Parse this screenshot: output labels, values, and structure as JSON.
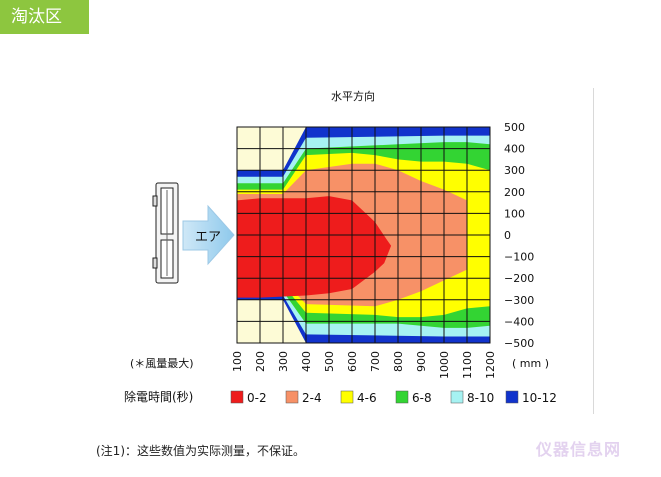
{
  "header": {
    "tab_label": "淘汰区"
  },
  "chart_data": {
    "type": "heatmap",
    "title": "水平方向",
    "x_ticks": [
      "100",
      "200",
      "300",
      "400",
      "500",
      "600",
      "700",
      "800",
      "900",
      "1000",
      "1100",
      "1200"
    ],
    "x_unit": "( mm )",
    "y_ticks": [
      "500",
      "400",
      "300",
      "200",
      "100",
      "0",
      "−100",
      "−200",
      "−300",
      "−400",
      "−500"
    ],
    "xlim": [
      100,
      1200
    ],
    "ylim": [
      -500,
      500
    ],
    "left_note": "(＊風量最大)",
    "air_label": "エア",
    "legend_title": "除電時間(秒)",
    "legend_position": "bottom",
    "legend": [
      {
        "label": "0-2",
        "color": "#ee1c1c"
      },
      {
        "label": "2-4",
        "color": "#f79167"
      },
      {
        "label": "4-6",
        "color": "#ffff00"
      },
      {
        "label": "6-8",
        "color": "#33d433"
      },
      {
        "label": "8-10",
        "color": "#a6f2f2"
      },
      {
        "label": "10-12",
        "color": "#1133cc"
      }
    ],
    "background_color": "#fdfbd6",
    "contours": [
      {
        "range": "10-12",
        "x": [
          100,
          300,
          400,
          1200,
          1200,
          400,
          300,
          100
        ],
        "y": [
          300,
          300,
          500,
          500,
          -500,
          -500,
          -300,
          -300
        ]
      },
      {
        "range": "8-10",
        "x": [
          100,
          300,
          400,
          1000,
          1200,
          1200,
          1000,
          400,
          300,
          100
        ],
        "y": [
          270,
          270,
          450,
          460,
          460,
          -470,
          -470,
          -460,
          -280,
          -280
        ]
      },
      {
        "range": "6-8",
        "x": [
          100,
          300,
          400,
          800,
          1000,
          1100,
          1200,
          1200,
          1100,
          1000,
          800,
          400,
          300,
          100
        ],
        "y": [
          240,
          240,
          400,
          420,
          430,
          430,
          420,
          -420,
          -430,
          -430,
          -410,
          -410,
          -260,
          -260
        ]
      },
      {
        "range": "4-6",
        "x": [
          100,
          300,
          400,
          600,
          700,
          800,
          900,
          1000,
          1100,
          1200,
          1200,
          1100,
          1000,
          900,
          800,
          700,
          400,
          300,
          100
        ],
        "y": [
          210,
          210,
          370,
          380,
          370,
          350,
          340,
          340,
          330,
          300,
          -330,
          -340,
          -370,
          -380,
          -380,
          -370,
          -360,
          -230,
          -230
        ]
      },
      {
        "range": "2-4",
        "x": [
          100,
          300,
          400,
          600,
          700,
          800,
          900,
          1000,
          1100,
          1100,
          1000,
          900,
          800,
          700,
          400,
          300,
          100
        ],
        "y": [
          190,
          190,
          300,
          330,
          330,
          300,
          250,
          210,
          160,
          -160,
          -210,
          -260,
          -300,
          -330,
          -320,
          -210,
          -210
        ]
      },
      {
        "range": "0-2",
        "x": [
          100,
          200,
          400,
          500,
          600,
          700,
          750,
          770,
          740,
          700,
          600,
          500,
          400,
          200,
          100
        ],
        "y": [
          160,
          170,
          170,
          180,
          160,
          60,
          -20,
          -50,
          -130,
          -170,
          -250,
          -270,
          -280,
          -290,
          -290
        ]
      }
    ]
  },
  "footnote": "(注1)：这些数值为实际测量，不保证。",
  "watermark": "仪器信息网"
}
